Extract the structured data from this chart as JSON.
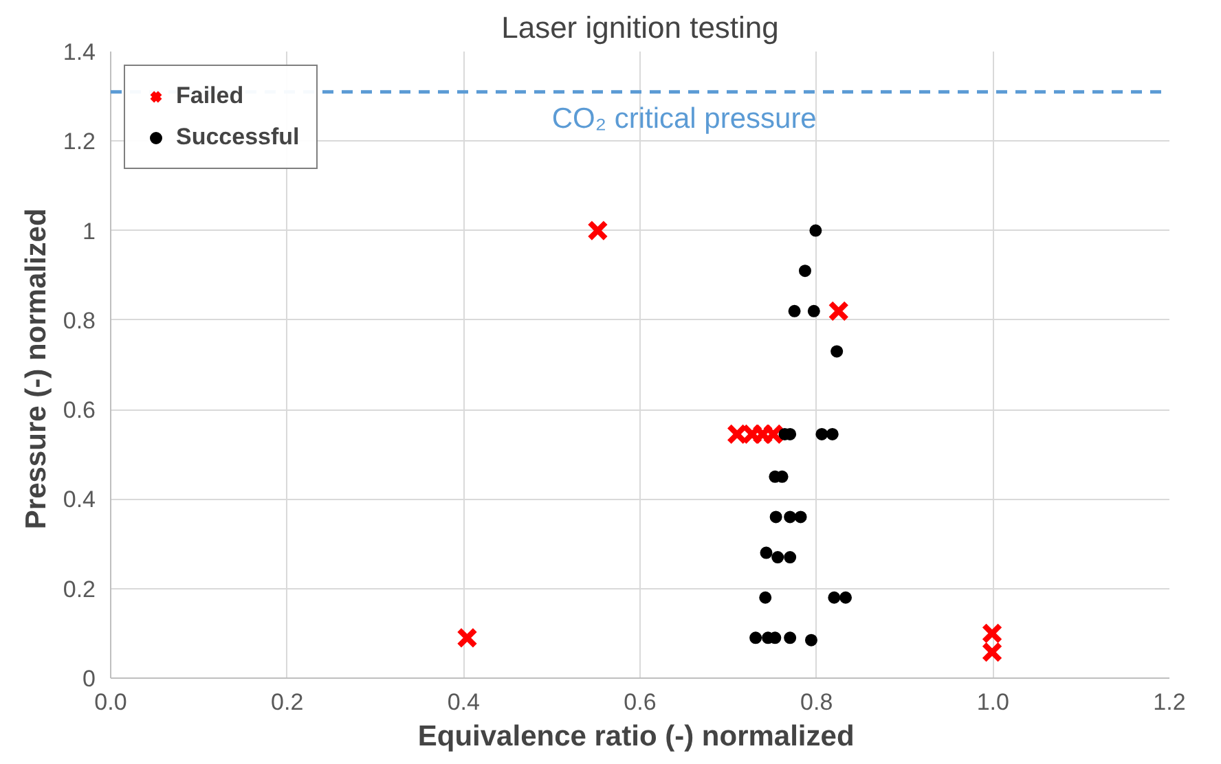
{
  "chart_data": {
    "type": "scatter",
    "title": "Laser ignition testing",
    "xlabel": "Equivalence ratio (-)  normalized",
    "ylabel": "Pressure (-)  normalized",
    "xlim": [
      0,
      1.2
    ],
    "ylim": [
      0,
      1.4
    ],
    "xticks": [
      {
        "value": 0,
        "label": "0.0"
      },
      0.2,
      0.4,
      0.6,
      0.8,
      {
        "value": 1,
        "label": "1.0"
      },
      1.2
    ],
    "yticks": [
      0,
      0.2,
      0.4,
      0.6,
      0.8,
      1,
      1.2,
      1.4
    ],
    "grid": true,
    "legend": "top left",
    "ref_lines": [
      {
        "axis": "y",
        "value": 1.31,
        "label": "CO₂ critical pressure",
        "color": "#5b9bd5",
        "line_style": "dashed"
      }
    ],
    "series": [
      {
        "name": "Failed",
        "color": "#ff0000",
        "marker": "cross",
        "x": [
          0.552,
          0.404,
          0.825,
          0.71,
          0.727,
          0.739,
          0.751,
          0.999,
          0.999
        ],
        "values": [
          1.0,
          0.09,
          0.82,
          0.545,
          0.545,
          0.545,
          0.545,
          0.1,
          0.058
        ]
      },
      {
        "name": "Successful",
        "color": "#000000",
        "marker": "circle",
        "x": [
          0.799,
          0.787,
          0.775,
          0.797,
          0.823,
          0.764,
          0.77,
          0.806,
          0.818,
          0.753,
          0.761,
          0.754,
          0.77,
          0.782,
          0.743,
          0.756,
          0.77,
          0.742,
          0.82,
          0.833,
          0.731,
          0.745,
          0.753,
          0.77,
          0.794
        ],
        "values": [
          1.0,
          0.91,
          0.82,
          0.82,
          0.73,
          0.545,
          0.545,
          0.545,
          0.545,
          0.45,
          0.45,
          0.36,
          0.36,
          0.36,
          0.28,
          0.27,
          0.27,
          0.18,
          0.18,
          0.18,
          0.09,
          0.09,
          0.09,
          0.09,
          0.085
        ]
      }
    ]
  }
}
